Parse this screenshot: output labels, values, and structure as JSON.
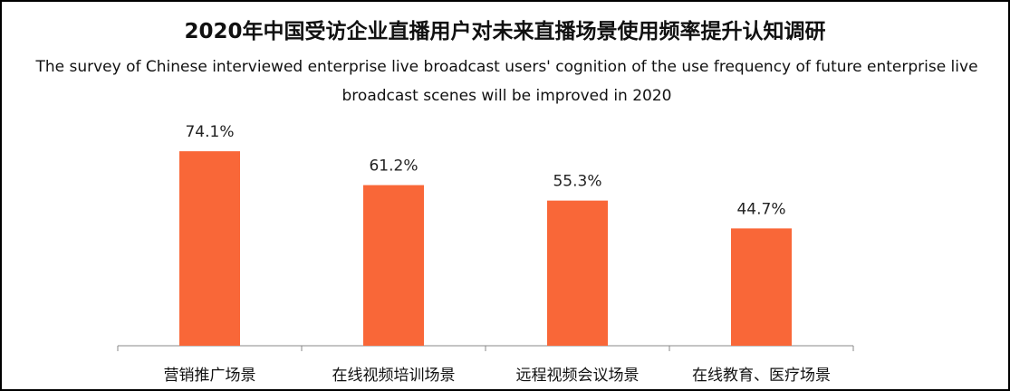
{
  "chart_data": {
    "type": "bar",
    "title": "2020年中国受访企业直播用户对未来直播场景使用频率提升认知调研",
    "subtitle": "The survey of Chinese interviewed enterprise live broadcast users' cognition of the use frequency of future enterprise live broadcast scenes will be improved  in 2020",
    "categories": [
      "营销推广场景",
      "在线视频培训场景",
      "远程视频会议场景",
      "在线教育、医疗场景"
    ],
    "values": [
      74.1,
      61.2,
      55.3,
      44.7
    ],
    "data_labels": [
      "74.1%",
      "61.2%",
      "55.3%",
      "44.7%"
    ],
    "unit": "%",
    "ylim": [
      0,
      100
    ],
    "grid": false,
    "legend": "none",
    "bar_color": "#f96738",
    "axis_color": "#888888"
  }
}
